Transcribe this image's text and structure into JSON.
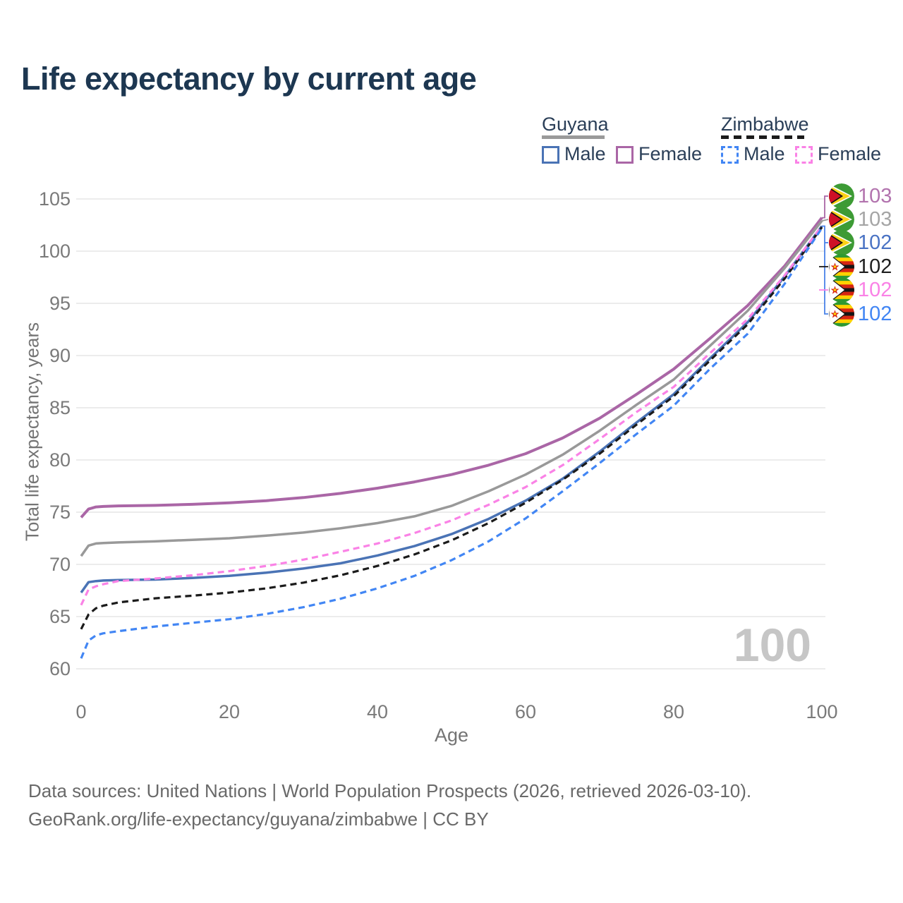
{
  "title": "Life expectancy by current age",
  "legend": {
    "guyana": {
      "label": "Guyana",
      "line_style": "solid",
      "underline_color": "#9a9a9a",
      "male_label": "Male",
      "male_color": "#4a73b5",
      "female_label": "Female",
      "female_color": "#aa66a6"
    },
    "zimbabwe": {
      "label": "Zimbabwe",
      "line_style": "dashed",
      "underline_color": "#1b1b1b",
      "male_label": "Male",
      "male_color": "#4286f4",
      "female_label": "Female",
      "female_color": "#fa82e6"
    }
  },
  "chart_data": {
    "type": "line",
    "title": "Life expectancy by current age",
    "xlabel": "Age",
    "ylabel": "Total life expectancy, years",
    "xlim": [
      0,
      100
    ],
    "ylim": [
      60,
      105
    ],
    "xticks": [
      0,
      20,
      40,
      60,
      80,
      100
    ],
    "yticks": [
      105,
      100,
      95,
      90,
      85,
      80,
      75,
      70,
      65,
      60
    ],
    "grid": "horizontal",
    "legend_position": "top-right",
    "watermark": "100",
    "ages": [
      0,
      1,
      2,
      3,
      5,
      10,
      15,
      20,
      25,
      30,
      35,
      40,
      45,
      50,
      55,
      60,
      65,
      70,
      75,
      80,
      85,
      90,
      95,
      100
    ],
    "series": [
      {
        "name": "Guyana Female",
        "country": "Guyana",
        "sex": "Female",
        "color": "#aa66a6",
        "style": "solid",
        "width": 4,
        "end_label": "103",
        "label_color": "#b273ae",
        "flag": "guyana",
        "values": [
          74.5,
          75.3,
          75.5,
          75.55,
          75.6,
          75.65,
          75.75,
          75.9,
          76.1,
          76.4,
          76.8,
          77.3,
          77.9,
          78.6,
          79.5,
          80.6,
          82.1,
          84.0,
          86.3,
          88.7,
          91.7,
          94.8,
          98.6,
          103.2
        ]
      },
      {
        "name": "Guyana Both sexes",
        "country": "Guyana",
        "sex": "Both",
        "color": "#999999",
        "style": "solid",
        "width": 3.5,
        "end_label": "103",
        "label_color": "#a5a5a5",
        "flag": "guyana",
        "values": [
          70.8,
          71.8,
          72.0,
          72.05,
          72.1,
          72.2,
          72.35,
          72.5,
          72.75,
          73.05,
          73.45,
          73.95,
          74.6,
          75.6,
          77.0,
          78.6,
          80.5,
          82.8,
          85.3,
          87.7,
          91.0,
          94.3,
          98.4,
          102.9
        ]
      },
      {
        "name": "Guyana Male",
        "country": "Guyana",
        "sex": "Male",
        "color": "#4a73b5",
        "style": "solid",
        "width": 3.5,
        "end_label": "102",
        "label_color": "#4a73c4",
        "flag": "guyana",
        "values": [
          67.3,
          68.3,
          68.4,
          68.45,
          68.5,
          68.55,
          68.7,
          68.9,
          69.2,
          69.6,
          70.1,
          70.85,
          71.75,
          72.9,
          74.35,
          76.1,
          78.2,
          80.8,
          83.6,
          86.3,
          89.8,
          93.2,
          97.6,
          102.4
        ]
      },
      {
        "name": "Zimbabwe Both sexes",
        "country": "Zimbabwe",
        "sex": "Both",
        "color": "#1b1b1b",
        "style": "dashed",
        "width": 3.2,
        "end_label": "102",
        "label_color": "#1f1f1f",
        "flag": "zimbabwe",
        "values": [
          63.8,
          65.2,
          65.8,
          66.05,
          66.35,
          66.75,
          67.0,
          67.3,
          67.7,
          68.25,
          68.95,
          69.85,
          70.95,
          72.3,
          73.95,
          75.9,
          78.1,
          80.6,
          83.4,
          86.1,
          89.6,
          93.0,
          97.4,
          102.3
        ]
      },
      {
        "name": "Zimbabwe Female",
        "country": "Zimbabwe",
        "sex": "Female",
        "color": "#fa82e6",
        "style": "dashed",
        "width": 3.2,
        "end_label": "102",
        "label_color": "#fa82e6",
        "flag": "zimbabwe",
        "values": [
          66.1,
          67.6,
          67.9,
          68.1,
          68.4,
          68.65,
          68.95,
          69.35,
          69.85,
          70.45,
          71.2,
          72.0,
          73.0,
          74.2,
          75.7,
          77.4,
          79.5,
          82.0,
          84.6,
          87.0,
          90.3,
          93.5,
          97.7,
          102.4
        ]
      },
      {
        "name": "Zimbabwe Male",
        "country": "Zimbabwe",
        "sex": "Male",
        "color": "#4286f4",
        "style": "dashed",
        "width": 3.2,
        "end_label": "102",
        "label_color": "#4286f4",
        "flag": "zimbabwe",
        "values": [
          61.0,
          62.7,
          63.2,
          63.4,
          63.6,
          64.05,
          64.4,
          64.75,
          65.25,
          65.9,
          66.7,
          67.7,
          68.9,
          70.4,
          72.2,
          74.4,
          77.0,
          79.7,
          82.5,
          85.2,
          88.8,
          92.1,
          96.9,
          102.2
        ]
      }
    ]
  },
  "footer": {
    "line1": "Data sources: United Nations | World Population Prospects (2026, retrieved 2026-03-10).",
    "line2": "GeoRank.org/life-expectancy/guyana/zimbabwe | CC BY"
  }
}
